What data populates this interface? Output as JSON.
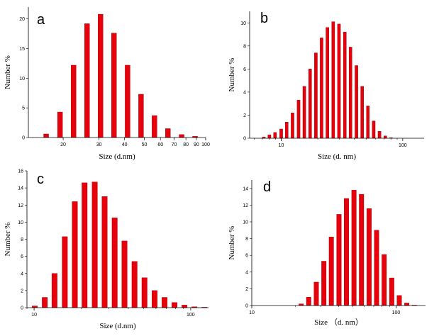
{
  "chart_data": [
    {
      "id": "a",
      "panel_label": "a",
      "type": "bar",
      "xscale": "log",
      "xlabel": "Size (d.nm)",
      "ylabel": "Number %",
      "xlim": [
        13.5,
        100
      ],
      "ylim": [
        0,
        22
      ],
      "xticks": [
        20,
        30,
        40,
        50,
        60,
        70,
        80,
        90,
        100
      ],
      "xtick_labels": [
        "20",
        "30",
        "40",
        "50",
        "60",
        "70",
        "80",
        "90",
        "100"
      ],
      "yticks": [
        0,
        5,
        10,
        15,
        20
      ],
      "ytick_labels": [
        "0",
        "5",
        "10",
        "15",
        "20"
      ],
      "bar_color": "#e8000b",
      "x": [
        16.5,
        19.3,
        22.5,
        26.2,
        30.5,
        35.5,
        41.4,
        48.2,
        56.1,
        65.3,
        76.2,
        88.7
      ],
      "values": [
        0.6,
        4.3,
        12.2,
        19.2,
        20.8,
        17.6,
        12.2,
        7.3,
        3.7,
        1.5,
        0.5,
        0.2
      ]
    },
    {
      "id": "b",
      "panel_label": "b",
      "type": "bar",
      "xscale": "log",
      "xlabel": "Size (d. nm)",
      "ylabel": "Number %",
      "xlim": [
        5.5,
        150
      ],
      "ylim": [
        0,
        11
      ],
      "xticks": [
        10,
        100
      ],
      "xtick_labels": [
        "10",
        "100"
      ],
      "yticks": [
        0,
        2,
        4,
        6,
        8,
        10
      ],
      "ytick_labels": [
        "0",
        "2",
        "4",
        "6",
        "8",
        "10"
      ],
      "bar_color": "#e8000b",
      "x": [
        7.2,
        8.0,
        8.9,
        10.0,
        11.1,
        12.4,
        13.9,
        15.5,
        17.3,
        19.3,
        21.5,
        24.0,
        26.8,
        29.9,
        33.4,
        37.2,
        41.6,
        46.4,
        51.7,
        57.7,
        64.4,
        71.9,
        80.2,
        89.5,
        99.9,
        111.5,
        124.4,
        138.8
      ],
      "values": [
        0.1,
        0.3,
        0.5,
        0.8,
        1.4,
        2.2,
        3.3,
        4.5,
        6.0,
        7.4,
        8.7,
        9.6,
        10.1,
        9.9,
        9.2,
        7.9,
        6.3,
        4.5,
        2.8,
        1.5,
        0.6,
        0.2,
        0.05,
        0,
        0,
        0,
        0,
        0
      ]
    },
    {
      "id": "c",
      "panel_label": "c",
      "type": "bar",
      "xscale": "log",
      "xlabel": "Size (d.nm)",
      "ylabel": "Number %",
      "xlim": [
        9,
        130
      ],
      "ylim": [
        0,
        16
      ],
      "xticks": [
        10,
        100
      ],
      "xtick_labels": [
        "10",
        "100"
      ],
      "yticks": [
        0,
        2,
        4,
        6,
        8,
        10,
        12,
        14,
        16
      ],
      "ytick_labels": [
        "0",
        "2",
        "4",
        "6",
        "8",
        "10",
        "12",
        "14",
        "16"
      ],
      "bar_color": "#e8000b",
      "x": [
        10.1,
        11.7,
        13.5,
        15.7,
        18.2,
        21.0,
        24.4,
        28.2,
        32.7,
        37.8,
        43.8,
        50.7,
        58.8,
        68.1,
        78.8,
        91.3,
        105.7,
        122.4
      ],
      "values": [
        0.2,
        1.2,
        4.0,
        8.3,
        12.4,
        14.6,
        14.7,
        13.0,
        10.5,
        7.8,
        5.4,
        3.5,
        2.0,
        1.2,
        0.6,
        0.3,
        0.1,
        0.05
      ]
    },
    {
      "id": "d",
      "panel_label": "d",
      "type": "bar",
      "xscale": "log",
      "xlabel": "Size （d. nm）",
      "ylabel": "Number %",
      "xlim": [
        10,
        160
      ],
      "ylim": [
        0,
        15
      ],
      "xticks": [
        10,
        100
      ],
      "xtick_labels": [
        "10",
        "100"
      ],
      "yticks": [
        0,
        2,
        4,
        6,
        8,
        10,
        12,
        14
      ],
      "ytick_labels": [
        "0",
        "2",
        "4",
        "6",
        "8",
        "10",
        "12",
        "14"
      ],
      "bar_color": "#e8000b",
      "x": [
        22.0,
        24.8,
        28.0,
        31.6,
        35.6,
        40.2,
        45.3,
        51.1,
        57.6,
        65.0,
        73.3,
        82.7,
        93.3,
        105.3,
        118.7,
        133.9
      ],
      "values": [
        0.2,
        1.0,
        2.8,
        5.3,
        8.2,
        10.9,
        12.8,
        13.8,
        13.3,
        11.6,
        9.0,
        6.1,
        3.3,
        1.2,
        0.3,
        0.05
      ]
    }
  ]
}
